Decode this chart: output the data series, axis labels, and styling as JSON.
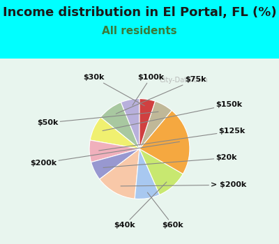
{
  "title": "Income distribution in El Portal, FL (%)",
  "subtitle": "All residents",
  "watermark": "City-Data.com",
  "bg_cyan": "#00FFFF",
  "bg_chart": "#dff0e8",
  "labels": [
    "$100k",
    "$75k",
    "$150k",
    "$125k",
    "$20k",
    "> $200k",
    "$60k",
    "$40k",
    "$200k",
    "$50k",
    "$30k"
  ],
  "values": [
    6,
    8,
    8,
    7,
    6,
    13,
    8,
    10,
    22,
    6,
    5
  ],
  "colors": [
    "#b8b0dc",
    "#a8c8a0",
    "#f0f070",
    "#f0b0bc",
    "#9898d0",
    "#f8c8a8",
    "#a8c8f0",
    "#c8e870",
    "#f5a840",
    "#c0b898",
    "#d04040"
  ],
  "startangle": 90,
  "title_fontsize": 13,
  "subtitle_fontsize": 11,
  "label_fontsize": 8
}
